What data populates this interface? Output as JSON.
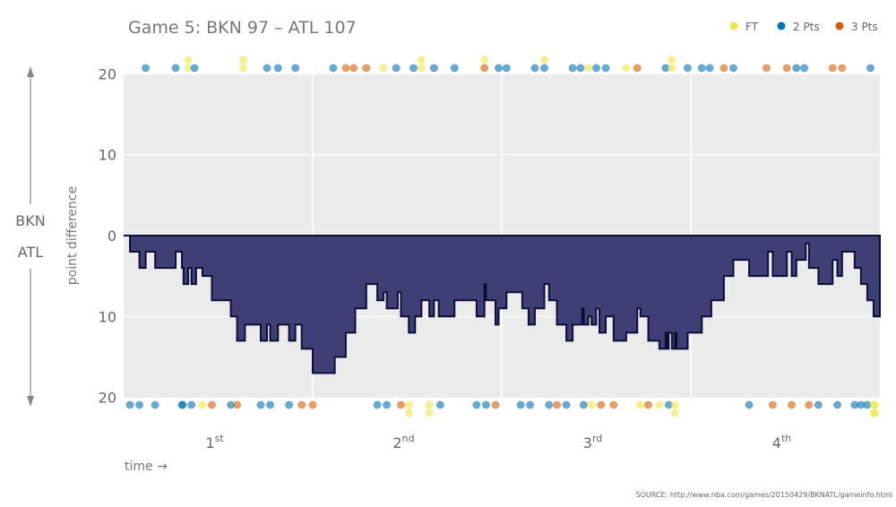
{
  "title": "Game 5: BKN 97  –  ATL 107",
  "legend": [
    {
      "key": "FT",
      "label": "FT",
      "color": "#f0e442"
    },
    {
      "key": "2",
      "label": "2 Pts",
      "color": "#0072b2"
    },
    {
      "key": "3",
      "label": "3 Pts",
      "color": "#d55e00"
    }
  ],
  "side_labels": {
    "top": "BKN",
    "bottom": "ATL"
  },
  "source": "SOURCE: http://www.nba.com/games/20150429/BKNATL/gameinfo.html",
  "chart_data": {
    "type": "area",
    "title": "Game 5: BKN 97  –  ATL 107",
    "xlabel": "time →",
    "ylabel": "point difference",
    "xlim": [
      0,
      48
    ],
    "ylim": [
      -20,
      20
    ],
    "y_ticks": [
      {
        "value": 20,
        "label": "20"
      },
      {
        "value": 10,
        "label": "10"
      },
      {
        "value": 0,
        "label": "0"
      },
      {
        "value": -10,
        "label": "10"
      },
      {
        "value": -20,
        "label": "20"
      }
    ],
    "x_ticks": [
      {
        "value": 6,
        "label": "1",
        "sup": "st"
      },
      {
        "value": 18,
        "label": "2",
        "sup": "nd"
      },
      {
        "value": 30,
        "label": "3",
        "sup": "rd"
      },
      {
        "value": 42,
        "label": "4",
        "sup": "th"
      }
    ],
    "quarter_lines": [
      12,
      24,
      36
    ],
    "grid": true,
    "legend_position": "top-right",
    "fill_color": "#3b3b72",
    "line_color": "#0d0d3a",
    "point_difference_steps": [
      [
        0,
        0
      ],
      [
        0.4,
        -2
      ],
      [
        1.0,
        -4
      ],
      [
        1.4,
        -2
      ],
      [
        2.0,
        -4
      ],
      [
        3.3,
        -2
      ],
      [
        3.7,
        -4
      ],
      [
        3.8,
        -6
      ],
      [
        4.1,
        -4
      ],
      [
        4.3,
        -6
      ],
      [
        4.6,
        -4
      ],
      [
        5.0,
        -5
      ],
      [
        5.6,
        -8
      ],
      [
        6.8,
        -10
      ],
      [
        7.2,
        -13
      ],
      [
        7.7,
        -11
      ],
      [
        8.7,
        -13
      ],
      [
        9.1,
        -11
      ],
      [
        9.3,
        -13
      ],
      [
        9.8,
        -11
      ],
      [
        10.5,
        -13
      ],
      [
        10.9,
        -11
      ],
      [
        11.3,
        -14
      ],
      [
        12.0,
        -17
      ],
      [
        13.4,
        -15
      ],
      [
        14.1,
        -12
      ],
      [
        14.7,
        -9
      ],
      [
        15.4,
        -6
      ],
      [
        16.1,
        -8
      ],
      [
        16.5,
        -7
      ],
      [
        16.7,
        -9
      ],
      [
        17.4,
        -7
      ],
      [
        17.6,
        -10
      ],
      [
        18.1,
        -12
      ],
      [
        18.5,
        -10
      ],
      [
        18.9,
        -8
      ],
      [
        19.4,
        -10
      ],
      [
        19.7,
        -8
      ],
      [
        20.0,
        -10
      ],
      [
        21.0,
        -8
      ],
      [
        22.4,
        -10
      ],
      [
        22.9,
        -6
      ],
      [
        23.0,
        -8
      ],
      [
        23.6,
        -11
      ],
      [
        23.8,
        -9
      ],
      [
        24.3,
        -7
      ],
      [
        25.3,
        -9
      ],
      [
        25.7,
        -11
      ],
      [
        26.1,
        -9
      ],
      [
        26.7,
        -6
      ],
      [
        27.0,
        -8
      ],
      [
        27.5,
        -11
      ],
      [
        28.1,
        -13
      ],
      [
        28.5,
        -11
      ],
      [
        29.1,
        -9
      ],
      [
        29.2,
        -11
      ],
      [
        29.5,
        -10
      ],
      [
        29.7,
        -11
      ],
      [
        30.0,
        -9
      ],
      [
        30.2,
        -12
      ],
      [
        30.6,
        -10
      ],
      [
        31.1,
        -13
      ],
      [
        31.9,
        -12
      ],
      [
        32.6,
        -9
      ],
      [
        32.8,
        -10
      ],
      [
        33.3,
        -13
      ],
      [
        34.0,
        -14
      ],
      [
        34.4,
        -12
      ],
      [
        34.5,
        -14
      ],
      [
        34.6,
        -12
      ],
      [
        34.8,
        -14
      ],
      [
        35.0,
        -12
      ],
      [
        35.1,
        -14
      ],
      [
        35.8,
        -12
      ],
      [
        36.7,
        -10
      ],
      [
        37.3,
        -8
      ],
      [
        38.1,
        -5
      ],
      [
        38.7,
        -3
      ],
      [
        39.7,
        -5
      ],
      [
        40.9,
        -2
      ],
      [
        41.2,
        -5
      ],
      [
        42.1,
        -2
      ],
      [
        42.4,
        -5
      ],
      [
        42.7,
        -3
      ],
      [
        43.3,
        -1
      ],
      [
        43.5,
        -4
      ],
      [
        44.1,
        -6
      ],
      [
        45.0,
        -3
      ],
      [
        45.3,
        -5
      ],
      [
        45.6,
        -2
      ],
      [
        46.4,
        -4
      ],
      [
        46.8,
        -6
      ],
      [
        47.2,
        -8
      ],
      [
        47.6,
        -10
      ],
      [
        48,
        -10
      ]
    ],
    "scoring_BKN": [
      [
        1.4,
        "2"
      ],
      [
        3.3,
        "2"
      ],
      [
        4.1,
        "FT"
      ],
      [
        4.1,
        "FT"
      ],
      [
        4.5,
        "2"
      ],
      [
        7.6,
        "FT"
      ],
      [
        7.6,
        "FT"
      ],
      [
        9.1,
        "2"
      ],
      [
        9.8,
        "2"
      ],
      [
        10.9,
        "2"
      ],
      [
        13.3,
        "2"
      ],
      [
        14.1,
        "3"
      ],
      [
        14.6,
        "3"
      ],
      [
        15.4,
        "3"
      ],
      [
        16.5,
        "FT"
      ],
      [
        17.3,
        "2"
      ],
      [
        18.4,
        "2"
      ],
      [
        18.9,
        "FT"
      ],
      [
        18.9,
        "FT"
      ],
      [
        19.7,
        "2"
      ],
      [
        21.0,
        "2"
      ],
      [
        22.9,
        "3"
      ],
      [
        22.9,
        "FT"
      ],
      [
        23.8,
        "2"
      ],
      [
        24.3,
        "2"
      ],
      [
        26.1,
        "2"
      ],
      [
        26.7,
        "2"
      ],
      [
        26.7,
        "FT"
      ],
      [
        28.5,
        "2"
      ],
      [
        29.0,
        "2"
      ],
      [
        29.5,
        "FT"
      ],
      [
        30.0,
        "2"
      ],
      [
        30.6,
        "2"
      ],
      [
        31.9,
        "FT"
      ],
      [
        32.6,
        "3"
      ],
      [
        34.4,
        "2"
      ],
      [
        34.8,
        "FT"
      ],
      [
        34.8,
        "FT"
      ],
      [
        35.8,
        "2"
      ],
      [
        36.7,
        "2"
      ],
      [
        37.2,
        "2"
      ],
      [
        38.1,
        "3"
      ],
      [
        38.7,
        "2"
      ],
      [
        40.8,
        "3"
      ],
      [
        42.1,
        "3"
      ],
      [
        42.7,
        "2"
      ],
      [
        43.2,
        "2"
      ],
      [
        45.0,
        "3"
      ],
      [
        45.6,
        "3"
      ],
      [
        47.4,
        "2"
      ]
    ],
    "scoring_ATL": [
      [
        0.4,
        "2"
      ],
      [
        1.0,
        "2"
      ],
      [
        2.0,
        "2"
      ],
      [
        3.7,
        "2"
      ],
      [
        3.75,
        "2"
      ],
      [
        4.3,
        "2"
      ],
      [
        5.0,
        "FT"
      ],
      [
        5.6,
        "3"
      ],
      [
        6.8,
        "2"
      ],
      [
        7.2,
        "3"
      ],
      [
        8.7,
        "2"
      ],
      [
        9.3,
        "2"
      ],
      [
        10.5,
        "2"
      ],
      [
        11.3,
        "3"
      ],
      [
        12.0,
        "3"
      ],
      [
        16.1,
        "2"
      ],
      [
        16.7,
        "2"
      ],
      [
        17.6,
        "3"
      ],
      [
        18.1,
        "FT"
      ],
      [
        18.1,
        "FT"
      ],
      [
        19.4,
        "FT"
      ],
      [
        19.4,
        "FT"
      ],
      [
        20.1,
        "2"
      ],
      [
        22.4,
        "2"
      ],
      [
        23.0,
        "2"
      ],
      [
        23.6,
        "3"
      ],
      [
        25.2,
        "2"
      ],
      [
        25.8,
        "2"
      ],
      [
        27.0,
        "2"
      ],
      [
        27.5,
        "3"
      ],
      [
        28.1,
        "2"
      ],
      [
        29.2,
        "2"
      ],
      [
        29.7,
        "FT"
      ],
      [
        30.3,
        "3"
      ],
      [
        31.1,
        "3"
      ],
      [
        32.8,
        "FT"
      ],
      [
        33.3,
        "3"
      ],
      [
        34.0,
        "FT"
      ],
      [
        34.6,
        "2"
      ],
      [
        35.0,
        "FT"
      ],
      [
        35.0,
        "FT"
      ],
      [
        39.7,
        "2"
      ],
      [
        41.2,
        "3"
      ],
      [
        42.4,
        "3"
      ],
      [
        43.5,
        "3"
      ],
      [
        44.1,
        "2"
      ],
      [
        45.3,
        "2"
      ],
      [
        46.4,
        "2"
      ],
      [
        46.8,
        "2"
      ],
      [
        47.2,
        "2"
      ],
      [
        47.6,
        "FT"
      ],
      [
        47.6,
        "FT"
      ],
      [
        47.7,
        "FT"
      ],
      [
        47.7,
        "FT"
      ]
    ]
  }
}
